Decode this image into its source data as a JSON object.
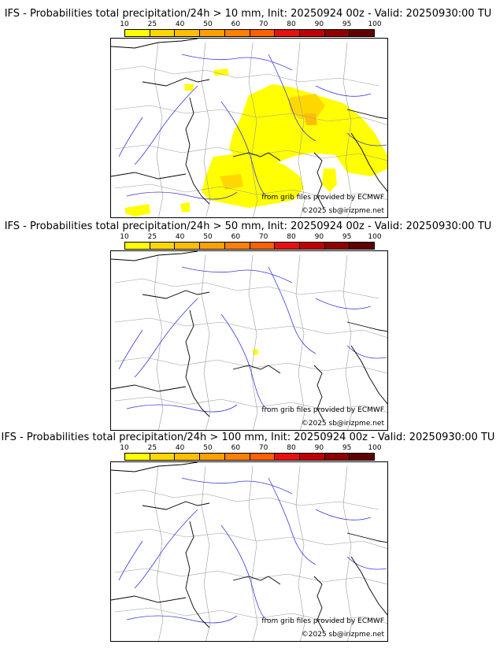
{
  "colorbar": {
    "ticks": [
      "10",
      "25",
      "40",
      "50",
      "60",
      "70",
      "80",
      "90",
      "95",
      "100"
    ],
    "colors": [
      "#ffff00",
      "#ffd700",
      "#ffbf00",
      "#ffa000",
      "#ff8000",
      "#ff6000",
      "#e81010",
      "#c00000",
      "#900000",
      "#600000"
    ]
  },
  "panels": [
    {
      "title": "IFS - Probabilities total precipitation/24h > 10 mm, Init: 20250924 00z - Valid: 20250930:00 TU",
      "credit1": "from grib files provided by ECMWF",
      "credit2": "©2025 sb@irizpme.net"
    },
    {
      "title": "IFS - Probabilities total precipitation/24h > 50 mm, Init: 20250924 00z - Valid: 20250930:00 TU",
      "credit1": "from grib files provided by ECMWF",
      "credit2": "©2025 sb@irizpme.net"
    },
    {
      "title": "IFS - Probabilities total precipitation/24h > 100 mm, Init: 20250924 00z - Valid: 20250930:00 TU",
      "credit1": "from grib files provided by ECMWF",
      "credit2": "©2025 sb@irizpme.net"
    }
  ],
  "colors": {
    "coast": "#000000",
    "rivers": "#3a3adf",
    "borders": "#9a9a9a"
  }
}
